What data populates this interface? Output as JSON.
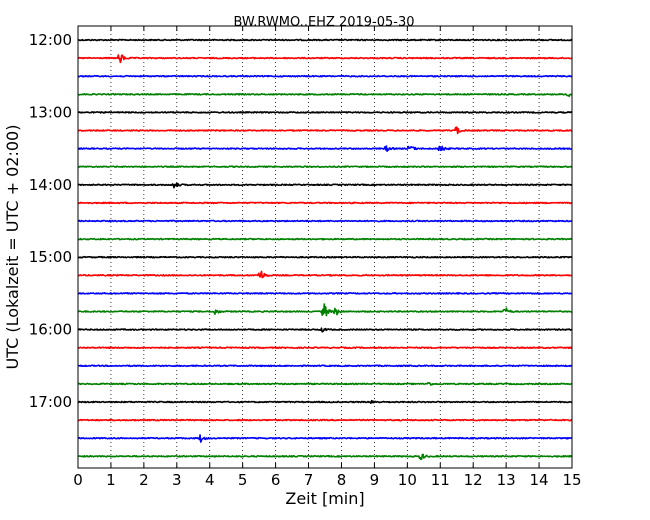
{
  "chart_data": {
    "type": "line",
    "title": "BW.RWMO..EHZ 2019-05-30",
    "xlabel": "Zeit  [min]",
    "ylabel": "UTC (Lokalzeit = UTC + 02:00)",
    "xlim": [
      0,
      15
    ],
    "x_ticks": [
      0,
      1,
      2,
      3,
      4,
      5,
      6,
      7,
      8,
      9,
      10,
      11,
      12,
      13,
      14,
      15
    ],
    "x_tick_labels": [
      "0",
      "1",
      "2",
      "3",
      "4",
      "5",
      "6",
      "7",
      "8",
      "9",
      "10",
      "11",
      "12",
      "13",
      "14",
      "15"
    ],
    "y_tick_labels": [
      "12:00",
      "13:00",
      "14:00",
      "15:00",
      "16:00",
      "17:00"
    ],
    "y_tick_rows": [
      0,
      4,
      8,
      12,
      16,
      20
    ],
    "grid": {
      "x": true,
      "y": false,
      "style": "dotted"
    },
    "color_cycle": [
      "#000000",
      "#ff0000",
      "#0000ff",
      "#008000"
    ],
    "series": [
      {
        "start_utc": "12:00",
        "color": "#000000",
        "events": []
      },
      {
        "start_utc": "12:15",
        "color": "#ff0000",
        "events": [
          {
            "t": 1.25,
            "amp": 9
          }
        ]
      },
      {
        "start_utc": "12:30",
        "color": "#0000ff",
        "events": []
      },
      {
        "start_utc": "12:45",
        "color": "#008000",
        "events": [
          {
            "t": 14.85,
            "amp": 4
          }
        ]
      },
      {
        "start_utc": "13:00",
        "color": "#000000",
        "events": []
      },
      {
        "start_utc": "13:15",
        "color": "#ff0000",
        "events": [
          {
            "t": 11.45,
            "amp": 7
          }
        ]
      },
      {
        "start_utc": "13:30",
        "color": "#0000ff",
        "events": [
          {
            "t": 9.35,
            "amp": 4
          },
          {
            "t": 10.05,
            "amp": 6
          },
          {
            "t": 10.95,
            "amp": 9
          }
        ]
      },
      {
        "start_utc": "13:45",
        "color": "#008000",
        "events": []
      },
      {
        "start_utc": "14:00",
        "color": "#000000",
        "events": [
          {
            "t": 2.9,
            "amp": 5
          }
        ]
      },
      {
        "start_utc": "14:15",
        "color": "#ff0000",
        "events": []
      },
      {
        "start_utc": "14:30",
        "color": "#0000ff",
        "events": []
      },
      {
        "start_utc": "14:45",
        "color": "#008000",
        "events": []
      },
      {
        "start_utc": "15:00",
        "color": "#000000",
        "events": []
      },
      {
        "start_utc": "15:15",
        "color": "#ff0000",
        "events": [
          {
            "t": 5.5,
            "amp": 10
          }
        ]
      },
      {
        "start_utc": "15:30",
        "color": "#0000ff",
        "events": []
      },
      {
        "start_utc": "15:45",
        "color": "#008000",
        "events": [
          {
            "t": 4.15,
            "amp": 4
          },
          {
            "t": 7.45,
            "amp": 12
          },
          {
            "t": 7.8,
            "amp": 6
          },
          {
            "t": 12.95,
            "amp": 6
          }
        ]
      },
      {
        "start_utc": "16:00",
        "color": "#000000",
        "events": [
          {
            "t": 7.4,
            "amp": 3
          }
        ]
      },
      {
        "start_utc": "16:15",
        "color": "#ff0000",
        "events": []
      },
      {
        "start_utc": "16:30",
        "color": "#0000ff",
        "events": []
      },
      {
        "start_utc": "16:45",
        "color": "#008000",
        "events": [
          {
            "t": 10.6,
            "amp": 3
          }
        ]
      },
      {
        "start_utc": "17:00",
        "color": "#000000",
        "events": [
          {
            "t": 8.9,
            "amp": 3
          }
        ]
      },
      {
        "start_utc": "17:15",
        "color": "#ff0000",
        "events": []
      },
      {
        "start_utc": "17:30",
        "color": "#0000ff",
        "events": [
          {
            "t": 3.7,
            "amp": 5
          }
        ]
      },
      {
        "start_utc": "17:45",
        "color": "#008000",
        "events": [
          {
            "t": 10.4,
            "amp": 5
          }
        ]
      }
    ]
  }
}
